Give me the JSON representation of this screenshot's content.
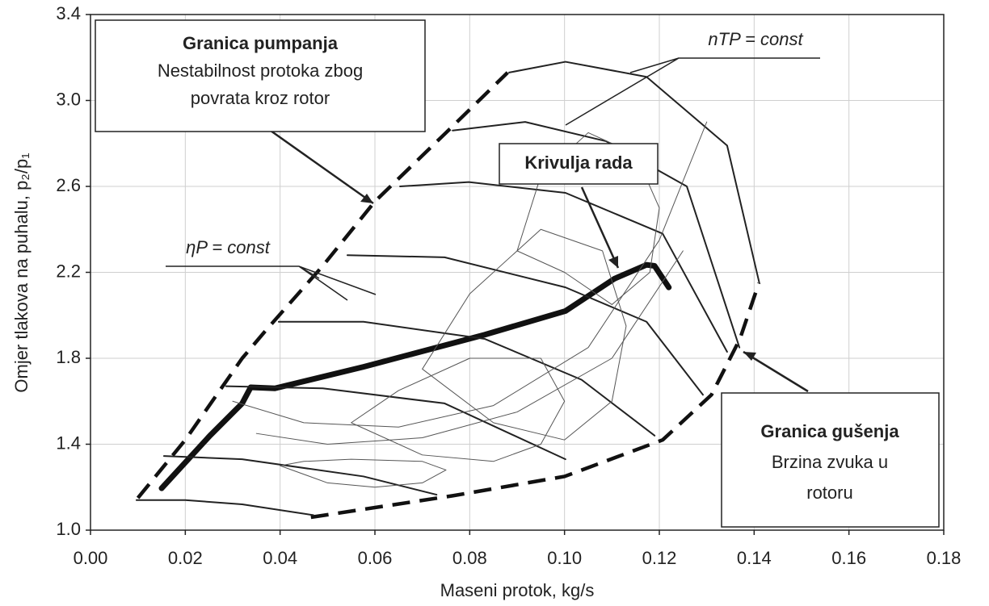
{
  "chart_data": {
    "type": "line",
    "x_label": "Maseni protok, kg/s",
    "y_label": "Omjer tlakova na puhalu, p₂/p₁",
    "xlim": [
      0,
      0.18
    ],
    "ylim": [
      1.0,
      3.4
    ],
    "xticks": [
      {
        "value": 0,
        "label": "0.00"
      },
      {
        "value": 0.02,
        "label": "0.02"
      },
      {
        "value": 0.04,
        "label": "0.04"
      },
      {
        "value": 0.06,
        "label": "0.06"
      },
      {
        "value": 0.08,
        "label": "0.08"
      },
      {
        "value": 0.1,
        "label": "0.10"
      },
      {
        "value": 0.12,
        "label": "0.12"
      },
      {
        "value": 0.14,
        "label": "0.14"
      },
      {
        "value": 0.16,
        "label": "0.16"
      },
      {
        "value": 0.18,
        "label": "0.18"
      }
    ],
    "yticks": [
      {
        "value": 1.0,
        "label": "1.0"
      },
      1.4,
      1.8,
      2.2,
      2.6,
      {
        "value": 3.0,
        "label": "3.0"
      },
      3.4
    ],
    "grid": true,
    "series": [
      {
        "style": "dashed",
        "color": "#111",
        "x": [
          0.01,
          0.02,
          0.032,
          0.037,
          0.049,
          0.06,
          0.075,
          0.088
        ],
        "values": [
          1.15,
          1.42,
          1.8,
          1.93,
          2.23,
          2.53,
          2.85,
          3.13
        ]
      },
      {
        "style": "dashed",
        "color": "#111",
        "x": [
          0.0465,
          0.0764,
          0.1,
          0.1207,
          0.131,
          0.137,
          0.141
        ],
        "values": [
          1.06,
          1.16,
          1.25,
          1.42,
          1.63,
          1.89,
          2.15
        ]
      },
      {
        "style": "thick",
        "color": "#111",
        "x": [
          0.015,
          0.0252,
          0.032,
          0.0338,
          0.0389,
          0.0576,
          0.0832,
          0.1002,
          0.1105,
          0.1173,
          0.119,
          0.122
        ],
        "values": [
          1.195,
          1.44,
          1.59,
          1.665,
          1.66,
          1.76,
          1.91,
          2.02,
          2.17,
          2.235,
          2.23,
          2.13
        ]
      },
      {
        "style": "medium",
        "color": "#222",
        "x": [
          0.0097,
          0.02,
          0.032,
          0.047
        ],
        "values": [
          1.14,
          1.14,
          1.12,
          1.07
        ]
      },
      {
        "style": "medium",
        "color": "#222",
        "x": [
          0.0155,
          0.032,
          0.0576,
          0.073
        ],
        "values": [
          1.345,
          1.33,
          1.25,
          1.165
        ]
      },
      {
        "style": "medium",
        "color": "#222",
        "x": [
          0.0286,
          0.049,
          0.0747,
          0.1002
        ],
        "values": [
          1.67,
          1.66,
          1.59,
          1.33
        ]
      },
      {
        "style": "medium",
        "color": "#222",
        "x": [
          0.0397,
          0.0576,
          0.0832,
          0.1036,
          0.119
        ],
        "values": [
          1.97,
          1.97,
          1.89,
          1.7,
          1.44
        ]
      },
      {
        "style": "medium",
        "color": "#222",
        "x": [
          0.0542,
          0.0747,
          0.1002,
          0.1173,
          0.1292
        ],
        "values": [
          2.28,
          2.27,
          2.13,
          1.97,
          1.63
        ]
      },
      {
        "style": "medium",
        "color": "#222",
        "x": [
          0.0653,
          0.0798,
          0.1002,
          0.1207,
          0.1343
        ],
        "values": [
          2.6,
          2.62,
          2.57,
          2.38,
          1.83
        ]
      },
      {
        "style": "medium",
        "color": "#222",
        "x": [
          0.0764,
          0.0917,
          0.1088,
          0.1258,
          0.1369
        ],
        "values": [
          2.86,
          2.9,
          2.81,
          2.6,
          1.85
        ]
      },
      {
        "style": "medium",
        "color": "#222",
        "x": [
          0.0883,
          0.1002,
          0.1173,
          0.1343,
          0.1411
        ],
        "values": [
          3.13,
          3.18,
          3.11,
          2.79,
          2.15
        ]
      },
      {
        "style": "thin",
        "color": "#555",
        "x": [
          0.04,
          0.05,
          0.06,
          0.07,
          0.075,
          0.07,
          0.055,
          0.045,
          0.04
        ],
        "values": [
          1.3,
          1.22,
          1.2,
          1.22,
          1.28,
          1.32,
          1.33,
          1.32,
          1.3
        ]
      },
      {
        "style": "thin",
        "color": "#555",
        "x": [
          0.055,
          0.07,
          0.085,
          0.095,
          0.1,
          0.095,
          0.08,
          0.065,
          0.055
        ],
        "values": [
          1.5,
          1.35,
          1.32,
          1.4,
          1.6,
          1.8,
          1.8,
          1.65,
          1.5
        ]
      },
      {
        "style": "thin",
        "color": "#555",
        "x": [
          0.07,
          0.085,
          0.1,
          0.11,
          0.113,
          0.108,
          0.095,
          0.08,
          0.07
        ],
        "values": [
          1.75,
          1.5,
          1.42,
          1.6,
          1.95,
          2.3,
          2.4,
          2.1,
          1.75
        ]
      },
      {
        "style": "thin",
        "color": "#555",
        "x": [
          0.09,
          0.1,
          0.11,
          0.118,
          0.12,
          0.115,
          0.105,
          0.095,
          0.09
        ],
        "values": [
          2.3,
          2.2,
          2.05,
          2.2,
          2.5,
          2.75,
          2.85,
          2.65,
          2.3
        ]
      },
      {
        "style": "thin",
        "color": "#555",
        "x": [
          0.035,
          0.05,
          0.07,
          0.09,
          0.11,
          0.125
        ],
        "values": [
          1.45,
          1.4,
          1.43,
          1.55,
          1.8,
          2.3
        ]
      },
      {
        "style": "thin",
        "color": "#555",
        "x": [
          0.03,
          0.045,
          0.065,
          0.085,
          0.105,
          0.12,
          0.13
        ],
        "values": [
          1.6,
          1.5,
          1.48,
          1.58,
          1.85,
          2.35,
          2.9
        ]
      }
    ],
    "annotations": [
      {
        "lines": [
          "Granica pumpanja",
          "Nestabilnost protoka zbog",
          "povrata kroz rotor"
        ]
      },
      {
        "lines": [
          "Krivulja rada"
        ]
      },
      {
        "lines": [
          "Granica gušenja",
          "Brzina zvuka u",
          "rotoru"
        ]
      },
      {
        "lines": [
          "nTP = const"
        ]
      },
      {
        "lines": [
          "ηP = const"
        ]
      }
    ]
  }
}
